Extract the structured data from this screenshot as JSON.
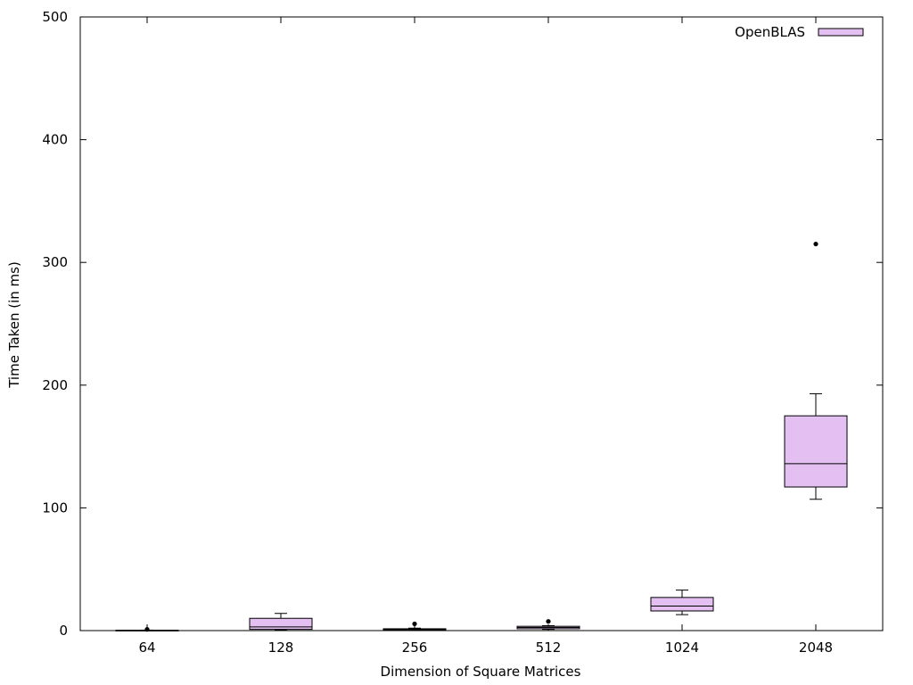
{
  "chart_data": {
    "type": "box",
    "title": "",
    "xlabel": "Dimension of Square Matrices",
    "ylabel": "Time Taken (in ms)",
    "ylim": [
      0,
      500
    ],
    "yticks": [
      0,
      100,
      200,
      300,
      400,
      500
    ],
    "grid": false,
    "legend_position": "top-right",
    "categories": [
      "64",
      "128",
      "256",
      "512",
      "1024",
      "2048"
    ],
    "series": [
      {
        "name": "OpenBLAS",
        "color": "#e4bff2",
        "boxes": [
          {
            "category": "64",
            "whisker_low": 0.1,
            "q1": 0.1,
            "median": 0.2,
            "q3": 0.3,
            "whisker_high": 0.4,
            "outliers": [
              1.0
            ]
          },
          {
            "category": "128",
            "whisker_low": 0.5,
            "q1": 1.0,
            "median": 3.0,
            "q3": 10.0,
            "whisker_high": 14.0,
            "outliers": []
          },
          {
            "category": "256",
            "whisker_low": 0.3,
            "q1": 0.5,
            "median": 1.0,
            "q3": 1.5,
            "whisker_high": 2.0,
            "outliers": [
              5.5
            ]
          },
          {
            "category": "512",
            "whisker_low": 1.0,
            "q1": 1.5,
            "median": 2.5,
            "q3": 3.5,
            "whisker_high": 4.0,
            "outliers": [
              7.5
            ]
          },
          {
            "category": "1024",
            "whisker_low": 13.0,
            "q1": 16.0,
            "median": 20.0,
            "q3": 27.0,
            "whisker_high": 33.0,
            "outliers": []
          },
          {
            "category": "2048",
            "whisker_low": 107.0,
            "q1": 117.0,
            "median": 136.0,
            "q3": 175.0,
            "whisker_high": 193.0,
            "outliers": [
              315.0
            ]
          }
        ]
      }
    ]
  }
}
